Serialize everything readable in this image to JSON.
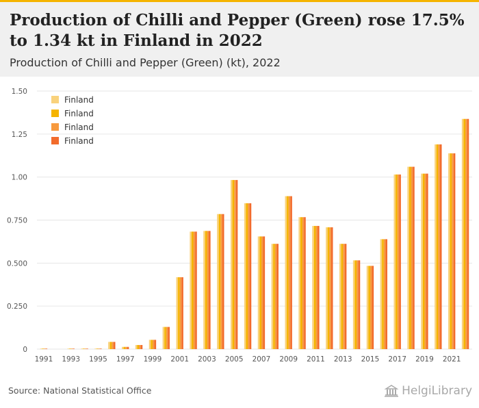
{
  "header": {
    "title": "Production of Chilli and Pepper (Green) rose 17.5% to 1.34 kt in Finland in 2022",
    "subtitle": "Production of Chilli and Pepper (Green) (kt), 2022"
  },
  "footer": {
    "source": "Source: National Statistical Office",
    "logo_text": "HelgiLibrary",
    "logo_icon": "library-building-icon"
  },
  "chart_data": {
    "type": "bar",
    "title": "Production of Chilli and Pepper (Green) (kt), 2022",
    "xlabel": "",
    "ylabel": "",
    "ylim": [
      0,
      1.5
    ],
    "yticks": [
      "0",
      "0.250",
      "0.500",
      "0.750",
      "1.00",
      "1.25",
      "1.50"
    ],
    "ytick_values": [
      0,
      0.25,
      0.5,
      0.75,
      1.0,
      1.25,
      1.5
    ],
    "grid": true,
    "legend_position": "top-left",
    "colors": [
      "#f9d27c",
      "#f5b400",
      "#f79a3e",
      "#f26b2c"
    ],
    "categories": [
      "1991",
      "1992",
      "1993",
      "1994",
      "1995",
      "1996",
      "1997",
      "1998",
      "1999",
      "2000",
      "2001",
      "2002",
      "2003",
      "2004",
      "2005",
      "2006",
      "2007",
      "2008",
      "2009",
      "2010",
      "2011",
      "2012",
      "2013",
      "2014",
      "2015",
      "2016",
      "2017",
      "2018",
      "2019",
      "2020",
      "2021",
      "2022"
    ],
    "xtick_labels": [
      "1991",
      "1993",
      "1995",
      "1997",
      "1999",
      "2001",
      "2003",
      "2005",
      "2007",
      "2009",
      "2011",
      "2013",
      "2015",
      "2017",
      "2019",
      "2021"
    ],
    "series": [
      {
        "name": "Finland",
        "values": [
          0.003,
          0.0,
          0.003,
          0.003,
          0.003,
          0.042,
          0.013,
          0.024,
          0.054,
          0.129,
          0.418,
          0.683,
          0.687,
          0.785,
          0.983,
          0.848,
          0.655,
          0.612,
          0.889,
          0.767,
          0.716,
          0.708,
          0.612,
          0.516,
          0.484,
          0.639,
          1.015,
          1.06,
          1.02,
          1.19,
          1.138,
          1.338
        ]
      },
      {
        "name": "Finland",
        "values": [
          0.003,
          0.0,
          0.003,
          0.003,
          0.003,
          0.042,
          0.013,
          0.024,
          0.054,
          0.129,
          0.418,
          0.683,
          0.687,
          0.785,
          0.983,
          0.848,
          0.655,
          0.612,
          0.889,
          0.767,
          0.716,
          0.708,
          0.612,
          0.516,
          0.484,
          0.639,
          1.015,
          1.06,
          1.02,
          1.19,
          1.138,
          1.338
        ]
      },
      {
        "name": "Finland",
        "values": [
          0.003,
          0.0,
          0.003,
          0.003,
          0.003,
          0.042,
          0.013,
          0.024,
          0.054,
          0.129,
          0.418,
          0.683,
          0.687,
          0.785,
          0.983,
          0.848,
          0.655,
          0.612,
          0.889,
          0.767,
          0.716,
          0.708,
          0.612,
          0.516,
          0.484,
          0.639,
          1.015,
          1.06,
          1.02,
          1.19,
          1.138,
          1.338
        ]
      },
      {
        "name": "Finland",
        "values": [
          0.003,
          0.0,
          0.003,
          0.003,
          0.003,
          0.042,
          0.013,
          0.024,
          0.054,
          0.129,
          0.418,
          0.683,
          0.687,
          0.785,
          0.983,
          0.848,
          0.655,
          0.612,
          0.889,
          0.767,
          0.716,
          0.708,
          0.612,
          0.516,
          0.484,
          0.639,
          1.015,
          1.06,
          1.02,
          1.19,
          1.138,
          1.338
        ]
      }
    ]
  }
}
